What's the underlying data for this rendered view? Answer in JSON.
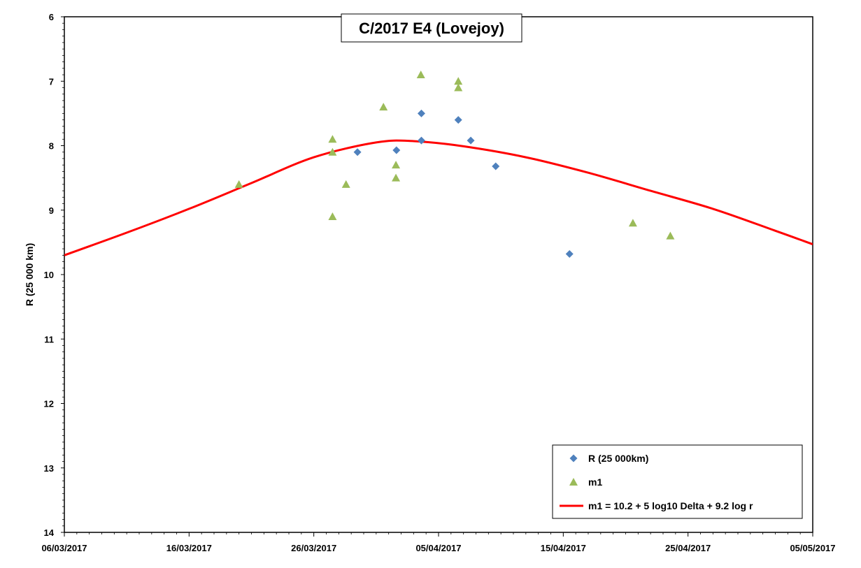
{
  "chart_data": {
    "type": "scatter",
    "title": "C/2017 E4 (Lovejoy)",
    "xlabel": "",
    "ylabel": "R (25 000 km)",
    "x_type": "date",
    "xlim": [
      "2017-03-06",
      "2017-05-05"
    ],
    "ylim": [
      6,
      14
    ],
    "y_inverted": true,
    "x_ticks": [
      "06/03/2017",
      "16/03/2017",
      "26/03/2017",
      "05/04/2017",
      "15/04/2017",
      "25/04/2017",
      "05/05/2017"
    ],
    "y_ticks": [
      6,
      7,
      8,
      9,
      10,
      11,
      12,
      13,
      14
    ],
    "grid": false,
    "legend_position": "bottom-right",
    "series": [
      {
        "name": "R (25 000km)",
        "marker": "diamond",
        "color": "#4f81bd",
        "points": [
          {
            "x": "2017-03-29T12:00",
            "y": 8.1
          },
          {
            "x": "2017-04-01T15:00",
            "y": 8.07
          },
          {
            "x": "2017-04-03T15:00",
            "y": 7.5
          },
          {
            "x": "2017-04-03T15:00",
            "y": 7.92
          },
          {
            "x": "2017-04-06T14:00",
            "y": 7.6
          },
          {
            "x": "2017-04-07T14:00",
            "y": 7.92
          },
          {
            "x": "2017-04-09T14:00",
            "y": 8.32
          },
          {
            "x": "2017-04-15T12:00",
            "y": 9.68
          }
        ]
      },
      {
        "name": "m1",
        "marker": "triangle",
        "color": "#9bbb59",
        "points": [
          {
            "x": "2017-03-20T00:00",
            "y": 8.6
          },
          {
            "x": "2017-03-27T12:00",
            "y": 7.9
          },
          {
            "x": "2017-03-27T12:00",
            "y": 8.1
          },
          {
            "x": "2017-03-27T12:00",
            "y": 9.1
          },
          {
            "x": "2017-03-28T14:00",
            "y": 8.6
          },
          {
            "x": "2017-03-31T14:00",
            "y": 7.4
          },
          {
            "x": "2017-04-01T14:00",
            "y": 8.3
          },
          {
            "x": "2017-04-01T14:00",
            "y": 8.5
          },
          {
            "x": "2017-04-03T14:00",
            "y": 6.9
          },
          {
            "x": "2017-04-06T14:00",
            "y": 7.0
          },
          {
            "x": "2017-04-06T14:00",
            "y": 7.1
          },
          {
            "x": "2017-04-20T14:00",
            "y": 9.2
          },
          {
            "x": "2017-04-23T14:00",
            "y": 9.4
          }
        ]
      },
      {
        "name": "m1 = 10.2 + 5 log10 Delta + 9.2 log r",
        "type": "line",
        "color": "#ff0000",
        "points": [
          {
            "x": "2017-03-06",
            "y": 9.7
          },
          {
            "x": "2017-03-11",
            "y": 9.35
          },
          {
            "x": "2017-03-16",
            "y": 8.98
          },
          {
            "x": "2017-03-21",
            "y": 8.58
          },
          {
            "x": "2017-03-26",
            "y": 8.18
          },
          {
            "x": "2017-03-31",
            "y": 7.95
          },
          {
            "x": "2017-04-03",
            "y": 7.93
          },
          {
            "x": "2017-04-07",
            "y": 8.01
          },
          {
            "x": "2017-04-12",
            "y": 8.18
          },
          {
            "x": "2017-04-17",
            "y": 8.42
          },
          {
            "x": "2017-04-22",
            "y": 8.7
          },
          {
            "x": "2017-04-27",
            "y": 8.98
          },
          {
            "x": "2017-05-02",
            "y": 9.32
          },
          {
            "x": "2017-05-05",
            "y": 9.53
          }
        ]
      }
    ]
  }
}
